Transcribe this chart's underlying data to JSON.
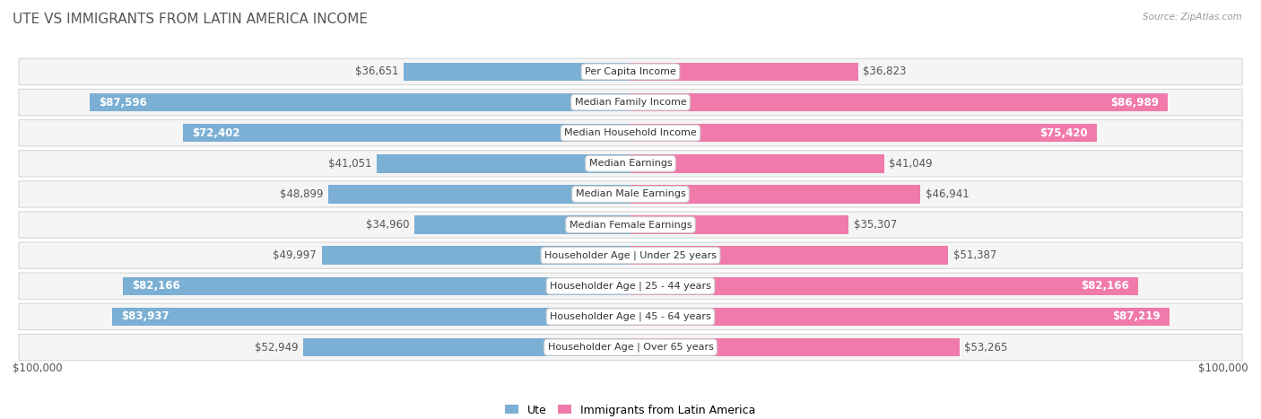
{
  "title": "UTE VS IMMIGRANTS FROM LATIN AMERICA INCOME",
  "source": "Source: ZipAtlas.com",
  "categories": [
    "Per Capita Income",
    "Median Family Income",
    "Median Household Income",
    "Median Earnings",
    "Median Male Earnings",
    "Median Female Earnings",
    "Householder Age | Under 25 years",
    "Householder Age | 25 - 44 years",
    "Householder Age | 45 - 64 years",
    "Householder Age | Over 65 years"
  ],
  "ute_values": [
    36651,
    87596,
    72402,
    41051,
    48899,
    34960,
    49997,
    82166,
    83937,
    52949
  ],
  "immigrant_values": [
    36823,
    86989,
    75420,
    41049,
    46941,
    35307,
    51387,
    82166,
    87219,
    53265
  ],
  "ute_labels": [
    "$36,651",
    "$87,596",
    "$72,402",
    "$41,051",
    "$48,899",
    "$34,960",
    "$49,997",
    "$82,166",
    "$83,937",
    "$52,949"
  ],
  "immigrant_labels": [
    "$36,823",
    "$86,989",
    "$75,420",
    "$41,049",
    "$46,941",
    "$35,307",
    "$51,387",
    "$82,166",
    "$87,219",
    "$53,265"
  ],
  "ute_color": "#7bafd4",
  "immigrant_color": "#f07aaa",
  "ute_color_dark": "#5a9ec8",
  "immigrant_color_dark": "#e85a95",
  "ute_label_color_threshold": 60000,
  "immigrant_label_color_threshold": 60000,
  "max_value": 100000,
  "xlabel_left": "$100,000",
  "xlabel_right": "$100,000",
  "legend_ute": "Ute",
  "legend_immigrant": "Immigrants from Latin America",
  "title_fontsize": 11,
  "label_fontsize": 8.5,
  "category_fontsize": 8.0,
  "row_bg": "#f0f0f0",
  "row_border": "#d8d8d8"
}
